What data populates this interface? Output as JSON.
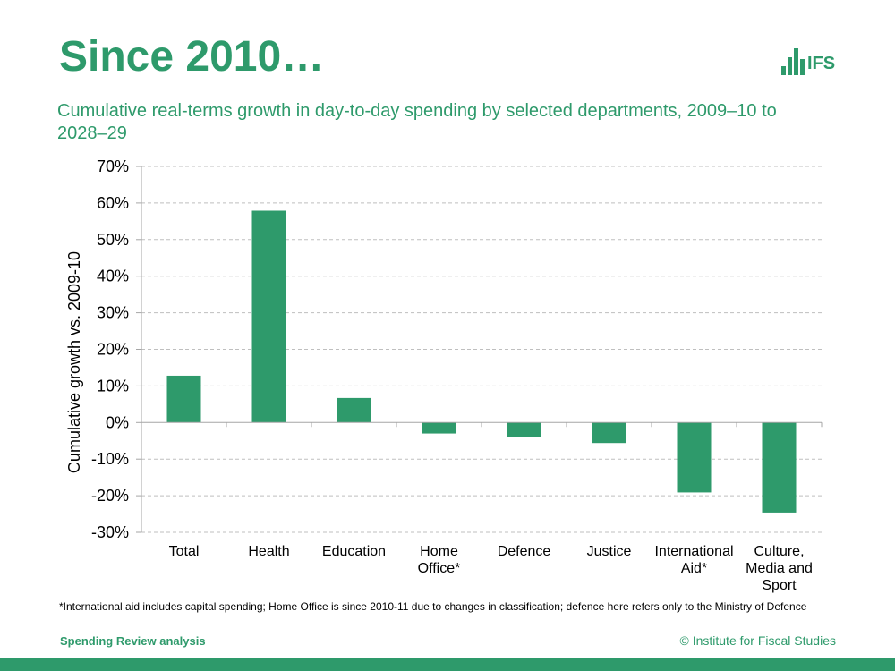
{
  "header": {
    "title": "Since 2010…",
    "logo_text": "IFS",
    "subtitle": "Cumulative real-terms growth in day-to-day spending by selected departments, 2009–10 to 2028–29"
  },
  "colors": {
    "accent": "#2e9a6b",
    "bar": "#2e9a6b",
    "grid": "#bfbfbf",
    "axis": "#a6a6a6"
  },
  "chart_data": {
    "type": "bar",
    "title": "",
    "xlabel": "",
    "ylabel": "Cumulative growth vs. 2009-10",
    "ylim": [
      -30,
      70
    ],
    "yticks": [
      70,
      60,
      50,
      40,
      30,
      20,
      10,
      0,
      -10,
      -20,
      -30
    ],
    "ytick_labels": [
      "70%",
      "60%",
      "50%",
      "40%",
      "30%",
      "20%",
      "10%",
      "0%",
      "-10%",
      "-20%",
      "-30%"
    ],
    "grid": true,
    "categories": [
      [
        "Total"
      ],
      [
        "Health"
      ],
      [
        "Education"
      ],
      [
        "Home",
        "Office*"
      ],
      [
        "Defence"
      ],
      [
        "Justice"
      ],
      [
        "International",
        "Aid*"
      ],
      [
        "Culture,",
        "Media and",
        "Sport"
      ]
    ],
    "values": [
      12.8,
      57.9,
      6.7,
      -3.0,
      -3.9,
      -5.6,
      -19.1,
      -24.6
    ]
  },
  "footnote": "*International aid includes capital spending; Home Office is since 2010-11 due to changes in classification; defence here refers only to the Ministry of Defence",
  "footer": {
    "left": "Spending Review analysis",
    "right": "© Institute for Fiscal Studies"
  }
}
